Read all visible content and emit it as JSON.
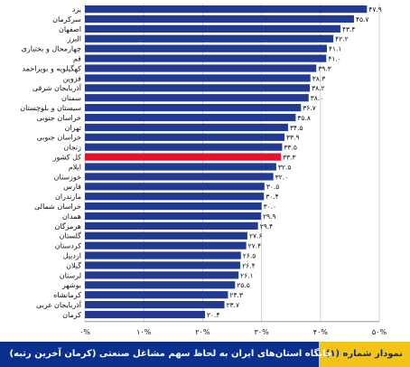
{
  "chart_data": {
    "type": "bar",
    "orientation": "horizontal",
    "categories": [
      "یزد",
      "سرکرمان",
      "اصفهان",
      "البرز",
      "چهارمحال و بختیاری",
      "قم",
      "کهگیلویه و بویراحمد",
      "قزوین",
      "آذربایجان شرقی",
      "سمنان",
      "سیستان و بلوچستان",
      "خراسان جنوبی",
      "تهران",
      "خراسان جنوبی",
      "زنجان",
      "کل کشور",
      "ایلام",
      "خوزستان",
      "فارس",
      "مازندران",
      "خراسان شمالی",
      "همدان",
      "هرمزگان",
      "گلستان",
      "کردستان",
      "اردبیل",
      "گیلان",
      "لرستان",
      "بوشهر",
      "کرمانشاه",
      "آذربایجان غربی",
      "کرمان"
    ],
    "values": [
      47.9,
      45.7,
      43.4,
      42.2,
      41.1,
      41.0,
      39.3,
      38.3,
      38.2,
      38.0,
      36.7,
      35.8,
      34.5,
      33.9,
      33.5,
      33.3,
      32.5,
      32.0,
      30.5,
      30.4,
      30.0,
      29.9,
      29.4,
      27.6,
      27.4,
      26.5,
      26.4,
      26.1,
      25.5,
      24.3,
      23.7,
      20.4
    ],
    "value_labels": [
      "۴۷.۹",
      "۴۵.۷",
      "۴۳.۴",
      "۴۲.۲",
      "۴۱.۱",
      "۴۱.۰",
      "۳۹.۳",
      "۳۸.۳",
      "۳۸.۲",
      "۳۸.۰",
      "۳۶.۷",
      "۳۵.۸",
      "۳۴.۵",
      "۳۳.۹",
      "۳۳.۵",
      "۳۳.۳",
      "۳۲.۵",
      "۳۲.۰",
      "۳۰.۵",
      "۳۰.۴",
      "۳۰.۰",
      "۲۹.۹",
      "۲۹.۴",
      "۲۷.۶",
      "۲۷.۴",
      "۲۶.۵",
      "۲۶.۴",
      "۲۶.۱",
      "۲۵.۵",
      "۲۴.۳",
      "۲۳.۷",
      "۲۰.۴"
    ],
    "highlight_category": "کل کشور",
    "xlim": [
      0,
      50
    ],
    "x_ticks": [
      "۰%",
      "۱۰%",
      "۲۰%",
      "۳۰%",
      "۴۰%",
      "۵۰%"
    ],
    "grid": true,
    "colors": {
      "bar": "#223b91",
      "highlight": "#e8112d",
      "grid": "#c8c8c8",
      "text": "#111111"
    }
  },
  "caption": {
    "number": "نمودار شماره (۱)",
    "title": "جایگاه استان‌های ایران به لحاظ سهم مشاغل صنعتی (کرمان آخرین رتبه)",
    "colors": {
      "band": "#0b2f8c",
      "tag": "#f3c417"
    }
  }
}
